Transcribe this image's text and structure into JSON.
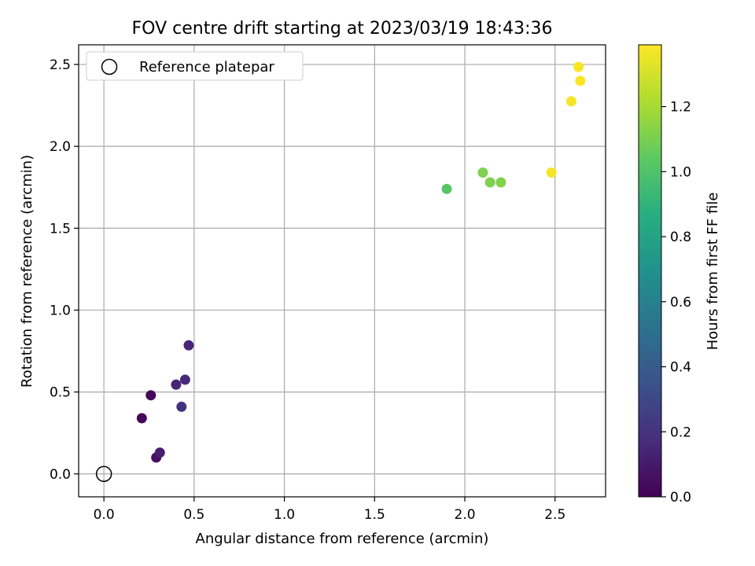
{
  "chart_data": {
    "type": "scatter",
    "title": "FOV centre drift starting at 2023/03/19 18:43:36",
    "xlabel": "Angular distance from reference (arcmin)",
    "ylabel": "Rotation from reference (arcmin)",
    "xlim": [
      -0.14,
      2.78
    ],
    "ylim": [
      -0.14,
      2.62
    ],
    "x_ticks": [
      0.0,
      0.5,
      1.0,
      1.5,
      2.0,
      2.5
    ],
    "y_ticks": [
      0.0,
      0.5,
      1.0,
      1.5,
      2.0,
      2.5
    ],
    "x_tick_labels": [
      "0.0",
      "0.5",
      "1.0",
      "1.5",
      "2.0",
      "2.5"
    ],
    "y_tick_labels": [
      "0.0",
      "0.5",
      "1.0",
      "1.5",
      "2.0",
      "2.5"
    ],
    "grid": true,
    "legend": {
      "position": "top-left",
      "label": "Reference platepar"
    },
    "reference_point": {
      "x": 0.0,
      "y": 0.0
    },
    "points": [
      {
        "x": 0.21,
        "y": 0.34,
        "hours": 0.02
      },
      {
        "x": 0.26,
        "y": 0.48,
        "hours": 0.03
      },
      {
        "x": 0.29,
        "y": 0.1,
        "hours": 0.06
      },
      {
        "x": 0.31,
        "y": 0.13,
        "hours": 0.12
      },
      {
        "x": 0.4,
        "y": 0.545,
        "hours": 0.14
      },
      {
        "x": 0.47,
        "y": 0.785,
        "hours": 0.14
      },
      {
        "x": 0.45,
        "y": 0.575,
        "hours": 0.16
      },
      {
        "x": 0.43,
        "y": 0.41,
        "hours": 0.2
      },
      {
        "x": 1.9,
        "y": 1.74,
        "hours": 1.02
      },
      {
        "x": 2.1,
        "y": 1.84,
        "hours": 1.12
      },
      {
        "x": 2.14,
        "y": 1.78,
        "hours": 1.12
      },
      {
        "x": 2.2,
        "y": 1.78,
        "hours": 1.13
      },
      {
        "x": 2.48,
        "y": 1.84,
        "hours": 1.37
      },
      {
        "x": 2.59,
        "y": 2.275,
        "hours": 1.37
      },
      {
        "x": 2.63,
        "y": 2.485,
        "hours": 1.38
      },
      {
        "x": 2.64,
        "y": 2.4,
        "hours": 1.38
      }
    ],
    "colorbar": {
      "label": "Hours from first FF file",
      "range": [
        0.0,
        1.39
      ],
      "ticks": [
        0.0,
        0.2,
        0.4,
        0.6,
        0.8,
        1.0,
        1.2
      ],
      "tick_labels": [
        "0.0",
        "0.2",
        "0.4",
        "0.6",
        "0.8",
        "1.0",
        "1.2"
      ],
      "colormap": "viridis"
    }
  }
}
